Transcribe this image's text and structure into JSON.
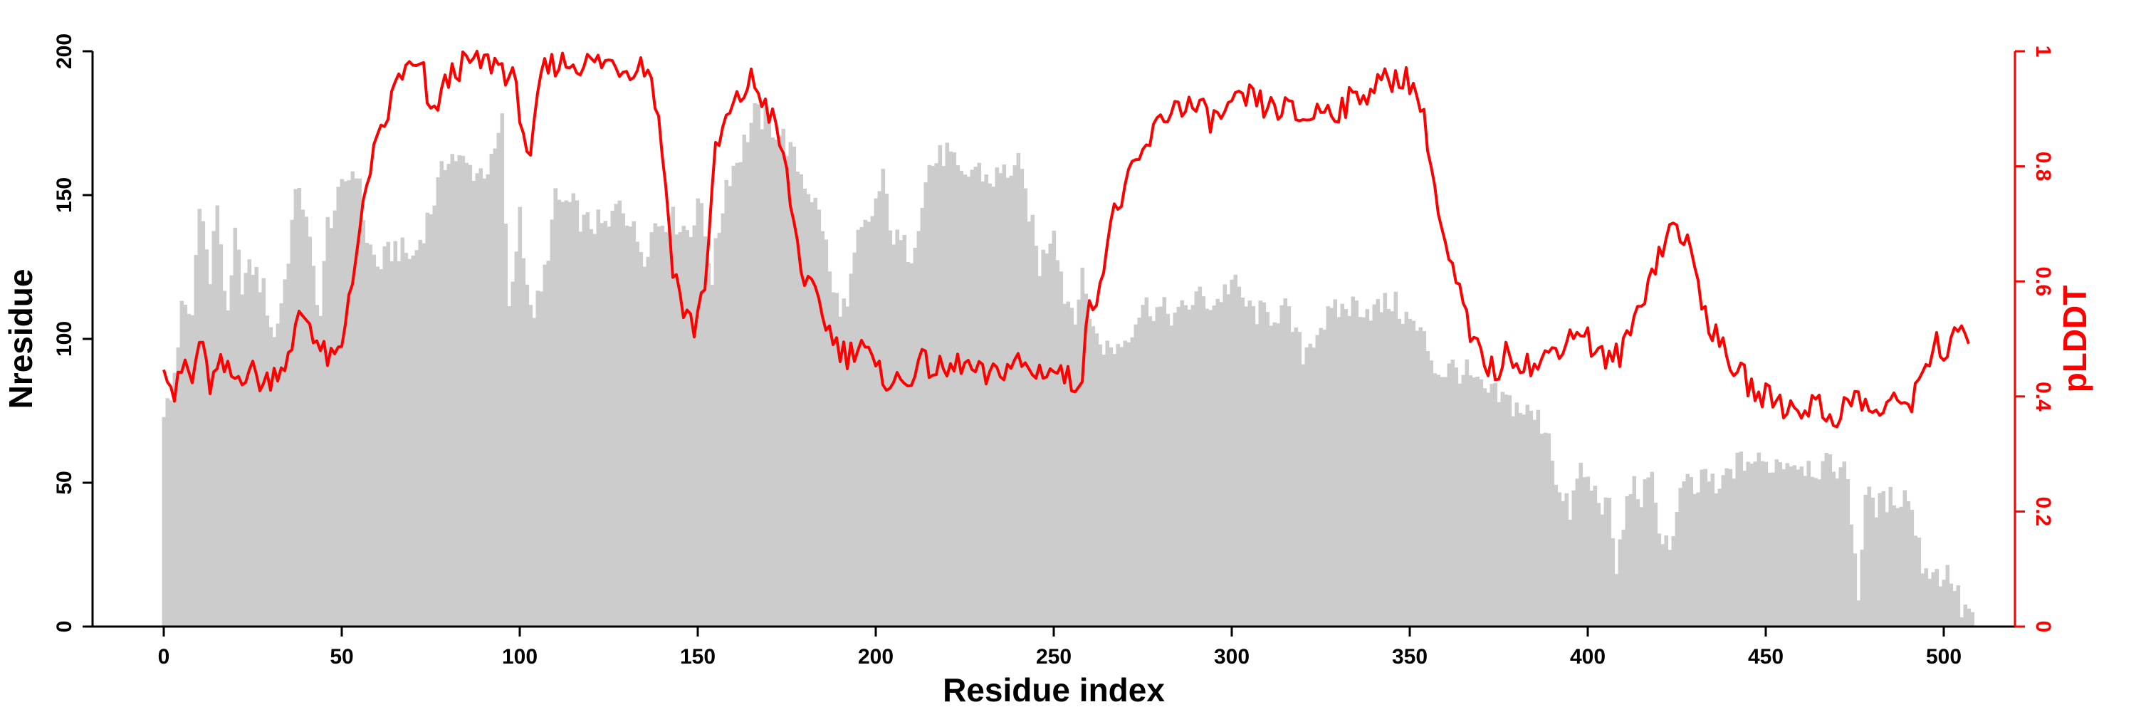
{
  "chart_data": {
    "type": "bar+line",
    "xlabel": "Residue index",
    "ylabel": "Nresidue",
    "y2label": "pLDDT",
    "xlim": [
      -20,
      520
    ],
    "ylim": [
      0,
      200
    ],
    "y2lim": [
      0,
      1
    ],
    "xticks": [
      0,
      50,
      100,
      150,
      200,
      250,
      300,
      350,
      400,
      450,
      500
    ],
    "yticks": [
      0,
      50,
      100,
      150,
      200
    ],
    "y2ticks": [
      0,
      0.2,
      0.4,
      0.6,
      0.8,
      1
    ],
    "y2ticklabels": [
      "0",
      "0.2",
      "0.4",
      "0.6",
      "0.8",
      "1"
    ],
    "grid": false,
    "series": [
      {
        "kind": "bar",
        "axis": "left",
        "color": "#cccccc",
        "knots": [
          [
            0,
            76
          ],
          [
            2,
            78
          ],
          [
            5,
            110
          ],
          [
            8,
            108
          ],
          [
            10,
            150
          ],
          [
            13,
            120
          ],
          [
            15,
            148
          ],
          [
            18,
            105
          ],
          [
            20,
            135
          ],
          [
            22,
            120
          ],
          [
            25,
            125
          ],
          [
            28,
            117
          ],
          [
            31,
            100
          ],
          [
            34,
            120
          ],
          [
            36,
            140
          ],
          [
            38,
            155
          ],
          [
            41,
            132
          ],
          [
            44,
            108
          ],
          [
            46,
            140
          ],
          [
            49,
            148
          ],
          [
            51,
            155
          ],
          [
            54,
            160
          ],
          [
            57,
            135
          ],
          [
            60,
            125
          ],
          [
            65,
            132
          ],
          [
            70,
            128
          ],
          [
            75,
            145
          ],
          [
            80,
            165
          ],
          [
            85,
            160
          ],
          [
            88,
            158
          ],
          [
            92,
            160
          ],
          [
            95,
            175
          ],
          [
            97,
            108
          ],
          [
            100,
            145
          ],
          [
            103,
            108
          ],
          [
            106,
            115
          ],
          [
            110,
            148
          ],
          [
            115,
            146
          ],
          [
            118,
            140
          ],
          [
            122,
            140
          ],
          [
            125,
            138
          ],
          [
            128,
            150
          ],
          [
            132,
            137
          ],
          [
            135,
            130
          ],
          [
            138,
            140
          ],
          [
            142,
            142
          ],
          [
            145,
            140
          ],
          [
            148,
            137
          ],
          [
            150,
            150
          ],
          [
            154,
            122
          ],
          [
            158,
            155
          ],
          [
            162,
            165
          ],
          [
            166,
            178
          ],
          [
            170,
            175
          ],
          [
            174,
            170
          ],
          [
            178,
            160
          ],
          [
            182,
            150
          ],
          [
            185,
            140
          ],
          [
            188,
            115
          ],
          [
            192,
            110
          ],
          [
            195,
            135
          ],
          [
            198,
            140
          ],
          [
            202,
            155
          ],
          [
            205,
            135
          ],
          [
            210,
            130
          ],
          [
            215,
            160
          ],
          [
            220,
            165
          ],
          [
            224,
            155
          ],
          [
            228,
            160
          ],
          [
            232,
            155
          ],
          [
            236,
            158
          ],
          [
            240,
            160
          ],
          [
            243,
            145
          ],
          [
            246,
            125
          ],
          [
            250,
            140
          ],
          [
            253,
            115
          ],
          [
            256,
            110
          ],
          [
            258,
            120
          ],
          [
            262,
            100
          ],
          [
            266,
            96
          ],
          [
            270,
            100
          ],
          [
            275,
            112
          ],
          [
            280,
            110
          ],
          [
            285,
            108
          ],
          [
            290,
            115
          ],
          [
            295,
            112
          ],
          [
            300,
            120
          ],
          [
            305,
            110
          ],
          [
            310,
            108
          ],
          [
            315,
            110
          ],
          [
            320,
            95
          ],
          [
            325,
            105
          ],
          [
            330,
            110
          ],
          [
            335,
            112
          ],
          [
            340,
            110
          ],
          [
            345,
            113
          ],
          [
            350,
            106
          ],
          [
            354,
            100
          ],
          [
            358,
            88
          ],
          [
            362,
            90
          ],
          [
            366,
            88
          ],
          [
            370,
            82
          ],
          [
            374,
            80
          ],
          [
            378,
            78
          ],
          [
            382,
            75
          ],
          [
            386,
            72
          ],
          [
            389,
            68
          ],
          [
            392,
            45
          ],
          [
            395,
            40
          ],
          [
            398,
            55
          ],
          [
            400,
            50
          ],
          [
            403,
            45
          ],
          [
            406,
            40
          ],
          [
            408,
            20
          ],
          [
            412,
            50
          ],
          [
            415,
            45
          ],
          [
            418,
            50
          ],
          [
            421,
            30
          ],
          [
            424,
            30
          ],
          [
            427,
            52
          ],
          [
            430,
            45
          ],
          [
            433,
            55
          ],
          [
            436,
            45
          ],
          [
            440,
            55
          ],
          [
            445,
            58
          ],
          [
            450,
            56
          ],
          [
            455,
            58
          ],
          [
            460,
            57
          ],
          [
            465,
            55
          ],
          [
            470,
            56
          ],
          [
            473,
            52
          ],
          [
            476,
            12
          ],
          [
            478,
            45
          ],
          [
            482,
            42
          ],
          [
            486,
            45
          ],
          [
            490,
            46
          ],
          [
            494,
            22
          ],
          [
            498,
            18
          ],
          [
            502,
            18
          ],
          [
            505,
            6
          ],
          [
            508,
            5
          ]
        ],
        "noise_amplitude": 5
      },
      {
        "kind": "line",
        "axis": "right",
        "color": "#ff0000",
        "knots": [
          [
            0,
            0.47
          ],
          [
            3,
            0.4
          ],
          [
            6,
            0.46
          ],
          [
            8,
            0.42
          ],
          [
            10,
            0.5
          ],
          [
            13,
            0.42
          ],
          [
            16,
            0.45
          ],
          [
            20,
            0.43
          ],
          [
            24,
            0.45
          ],
          [
            28,
            0.42
          ],
          [
            32,
            0.45
          ],
          [
            36,
            0.47
          ],
          [
            38,
            0.55
          ],
          [
            41,
            0.53
          ],
          [
            44,
            0.48
          ],
          [
            47,
            0.46
          ],
          [
            50,
            0.48
          ],
          [
            52,
            0.58
          ],
          [
            55,
            0.68
          ],
          [
            58,
            0.8
          ],
          [
            62,
            0.87
          ],
          [
            66,
            0.96
          ],
          [
            70,
            0.97
          ],
          [
            73,
            0.96
          ],
          [
            75,
            0.88
          ],
          [
            78,
            0.93
          ],
          [
            82,
            0.97
          ],
          [
            86,
            0.98
          ],
          [
            90,
            0.98
          ],
          [
            94,
            0.98
          ],
          [
            98,
            0.95
          ],
          [
            100,
            0.9
          ],
          [
            103,
            0.8
          ],
          [
            106,
            0.96
          ],
          [
            110,
            0.98
          ],
          [
            114,
            0.98
          ],
          [
            120,
            0.98
          ],
          [
            126,
            0.98
          ],
          [
            130,
            0.97
          ],
          [
            134,
            0.98
          ],
          [
            137,
            0.96
          ],
          [
            140,
            0.83
          ],
          [
            143,
            0.63
          ],
          [
            146,
            0.55
          ],
          [
            149,
            0.52
          ],
          [
            152,
            0.6
          ],
          [
            155,
            0.82
          ],
          [
            158,
            0.88
          ],
          [
            162,
            0.92
          ],
          [
            165,
            0.95
          ],
          [
            168,
            0.92
          ],
          [
            171,
            0.88
          ],
          [
            174,
            0.82
          ],
          [
            177,
            0.7
          ],
          [
            180,
            0.6
          ],
          [
            184,
            0.56
          ],
          [
            188,
            0.5
          ],
          [
            192,
            0.47
          ],
          [
            196,
            0.5
          ],
          [
            200,
            0.44
          ],
          [
            204,
            0.43
          ],
          [
            208,
            0.42
          ],
          [
            212,
            0.46
          ],
          [
            216,
            0.45
          ],
          [
            220,
            0.44
          ],
          [
            224,
            0.46
          ],
          [
            228,
            0.44
          ],
          [
            232,
            0.43
          ],
          [
            236,
            0.45
          ],
          [
            240,
            0.46
          ],
          [
            244,
            0.44
          ],
          [
            248,
            0.45
          ],
          [
            252,
            0.44
          ],
          [
            256,
            0.42
          ],
          [
            258,
            0.45
          ],
          [
            260,
            0.55
          ],
          [
            263,
            0.6
          ],
          [
            266,
            0.7
          ],
          [
            270,
            0.76
          ],
          [
            275,
            0.82
          ],
          [
            280,
            0.88
          ],
          [
            285,
            0.91
          ],
          [
            290,
            0.9
          ],
          [
            295,
            0.88
          ],
          [
            300,
            0.9
          ],
          [
            305,
            0.92
          ],
          [
            310,
            0.9
          ],
          [
            315,
            0.9
          ],
          [
            320,
            0.88
          ],
          [
            325,
            0.9
          ],
          [
            330,
            0.9
          ],
          [
            335,
            0.92
          ],
          [
            340,
            0.94
          ],
          [
            345,
            0.95
          ],
          [
            348,
            0.96
          ],
          [
            352,
            0.93
          ],
          [
            355,
            0.85
          ],
          [
            358,
            0.72
          ],
          [
            361,
            0.63
          ],
          [
            364,
            0.58
          ],
          [
            367,
            0.5
          ],
          [
            370,
            0.47
          ],
          [
            374,
            0.44
          ],
          [
            378,
            0.48
          ],
          [
            382,
            0.46
          ],
          [
            386,
            0.45
          ],
          [
            390,
            0.48
          ],
          [
            394,
            0.5
          ],
          [
            398,
            0.52
          ],
          [
            402,
            0.48
          ],
          [
            406,
            0.46
          ],
          [
            410,
            0.48
          ],
          [
            414,
            0.55
          ],
          [
            418,
            0.62
          ],
          [
            421,
            0.66
          ],
          [
            424,
            0.7
          ],
          [
            427,
            0.68
          ],
          [
            430,
            0.62
          ],
          [
            433,
            0.55
          ],
          [
            436,
            0.5
          ],
          [
            440,
            0.46
          ],
          [
            444,
            0.43
          ],
          [
            448,
            0.4
          ],
          [
            452,
            0.4
          ],
          [
            456,
            0.38
          ],
          [
            460,
            0.38
          ],
          [
            464,
            0.39
          ],
          [
            468,
            0.36
          ],
          [
            472,
            0.38
          ],
          [
            476,
            0.4
          ],
          [
            480,
            0.37
          ],
          [
            484,
            0.38
          ],
          [
            488,
            0.39
          ],
          [
            492,
            0.4
          ],
          [
            495,
            0.46
          ],
          [
            498,
            0.5
          ],
          [
            501,
            0.46
          ],
          [
            504,
            0.52
          ],
          [
            507,
            0.5
          ]
        ],
        "noise_amplitude": 0.025
      }
    ]
  }
}
